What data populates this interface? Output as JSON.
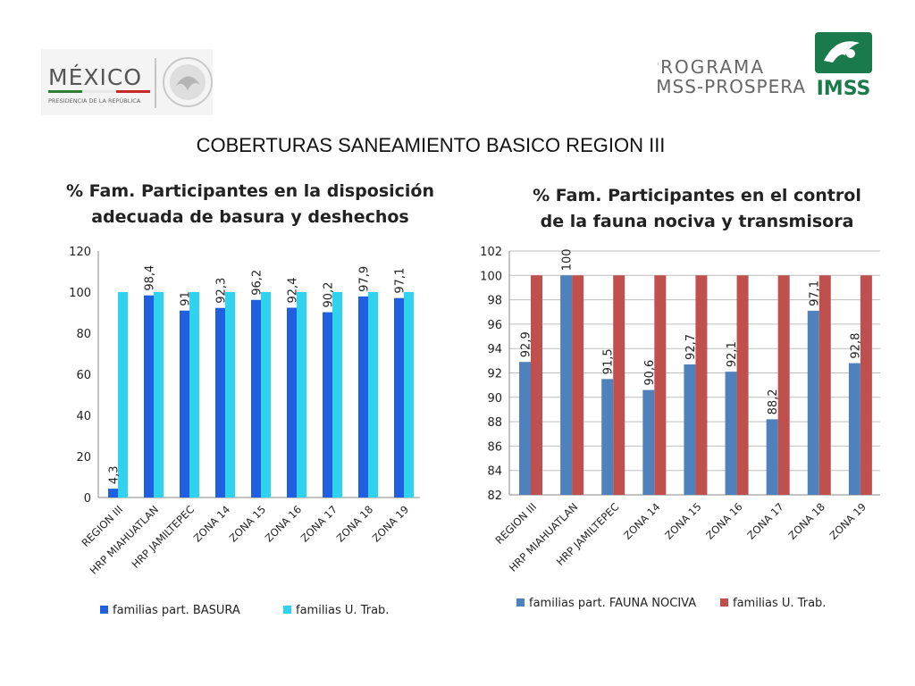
{
  "header": {
    "mexico_logo": {
      "brand": "MÉXICO",
      "subtitle": "PRESIDENCIA DE LA REPÚBLICA"
    },
    "imss_logo": {
      "line1": "PROGRAMA",
      "line2": "IMSS-PROSPERA",
      "brand": "IMSS"
    }
  },
  "main_title": "COBERTURAS SANEAMIENTO BASICO REGION III",
  "colors": {
    "series_a_left": "#1f5fe0",
    "series_b_left": "#2fd3ef",
    "series_a_right": "#4f81bd",
    "series_b_right": "#c0504d",
    "axis": "#888888",
    "grid": "#bfbfbf"
  },
  "chart_data": [
    {
      "type": "bar",
      "title": "% Fam. Participantes en la disposición adecuada de basura y deshechos",
      "title_lines": [
        "% Fam. Participantes en la disposición",
        "adecuada de basura y deshechos"
      ],
      "categories": [
        "REGION III",
        "HRP MIAHUATLAN",
        "HRP JAMILTEPEC",
        "ZONA 14",
        "ZONA 15",
        "ZONA 16",
        "ZONA 17",
        "ZONA 18",
        "ZONA 19"
      ],
      "series": [
        {
          "name": "familias part. BASURA",
          "values": [
            4.3,
            98.4,
            91,
            92.3,
            96.2,
            92.4,
            90.2,
            97.9,
            97.1
          ],
          "labels": [
            "4,3",
            "98,4",
            "91",
            "92,3",
            "96,2",
            "92,4",
            "90,2",
            "97,9",
            "97,1"
          ]
        },
        {
          "name": "familias U. Trab.",
          "values": [
            100,
            100,
            100,
            100,
            100,
            100,
            100,
            100,
            100
          ]
        }
      ],
      "ylim": [
        0,
        120
      ],
      "yticks": [
        0,
        20,
        40,
        60,
        80,
        100,
        120
      ],
      "legend": "bottom",
      "grid": false
    },
    {
      "type": "bar",
      "title": "% Fam. Participantes en el control de la fauna nociva y transmisora",
      "title_lines": [
        "% Fam. Participantes en el control",
        "de la fauna nociva y transmisora"
      ],
      "categories": [
        "REGION III",
        "HRP MIAHUATLAN",
        "HRP JAMILTEPEC",
        "ZONA 14",
        "ZONA 15",
        "ZONA 16",
        "ZONA 17",
        "ZONA 18",
        "ZONA 19"
      ],
      "series": [
        {
          "name": "familias part. FAUNA NOCIVA",
          "values": [
            92.9,
            100,
            91.5,
            90.6,
            92.7,
            92.1,
            88.2,
            97.1,
            92.8
          ],
          "labels": [
            "92,9",
            "100",
            "91,5",
            "90,6",
            "92,7",
            "92,1",
            "88,2",
            "97,1",
            "92,8"
          ]
        },
        {
          "name": "familias U. Trab.",
          "values": [
            100,
            100,
            100,
            100,
            100,
            100,
            100,
            100,
            100
          ]
        }
      ],
      "ylim": [
        82,
        102
      ],
      "yticks": [
        82,
        84,
        86,
        88,
        90,
        92,
        94,
        96,
        98,
        100,
        102
      ],
      "legend": "bottom",
      "grid": true
    }
  ]
}
